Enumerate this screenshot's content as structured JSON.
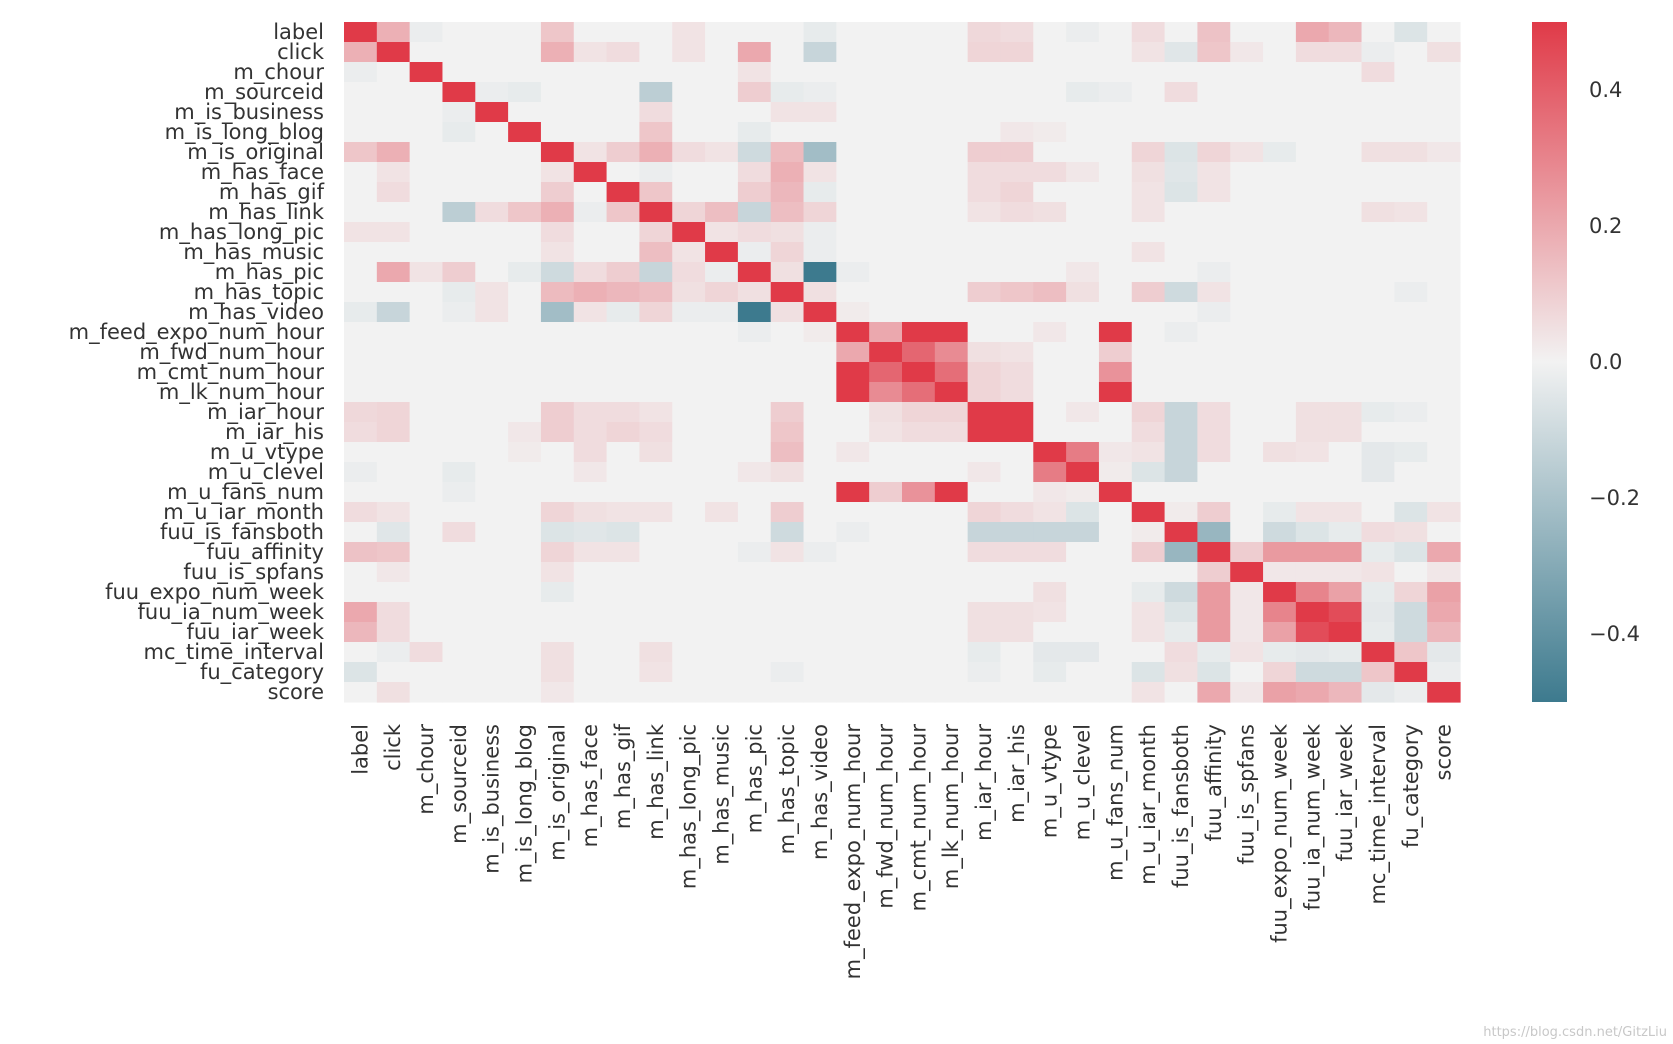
{
  "chart_data": {
    "type": "heatmap",
    "title": "",
    "labels": [
      "label",
      "click",
      "m_chour",
      "m_sourceid",
      "m_is_business",
      "m_is_long_blog",
      "m_is_original",
      "m_has_face",
      "m_has_gif",
      "m_has_link",
      "m_has_long_pic",
      "m_has_music",
      "m_has_pic",
      "m_has_topic",
      "m_has_video",
      "m_feed_expo_num_hour",
      "m_fwd_num_hour",
      "m_cmt_num_hour",
      "m_lk_num_hour",
      "m_iar_hour",
      "m_iar_his",
      "m_u_vtype",
      "m_u_clevel",
      "m_u_fans_num",
      "m_u_iar_month",
      "fuu_is_fansboth",
      "fuu_affinity",
      "fuu_is_spfans",
      "fuu_expo_num_week",
      "fuu_ia_num_week",
      "fuu_iar_week",
      "mc_time_interval",
      "fu_category",
      "score"
    ],
    "vmin": -0.5,
    "vmax": 0.5,
    "colormap": {
      "negative": "#3d7a8e",
      "center": "#f2f2f2",
      "positive": "#e03a48"
    },
    "colorbar_ticks": [
      -0.4,
      -0.2,
      0.0,
      0.2,
      0.4
    ],
    "colorbar_tick_labels": [
      "−0.4",
      "−0.2",
      "0.0",
      "0.2",
      "0.4"
    ],
    "entries": [
      [
        0,
        1,
        0.18
      ],
      [
        0,
        2,
        -0.02
      ],
      [
        0,
        6,
        0.12
      ],
      [
        0,
        10,
        0.04
      ],
      [
        0,
        14,
        -0.03
      ],
      [
        0,
        19,
        0.07
      ],
      [
        0,
        20,
        0.06
      ],
      [
        0,
        22,
        -0.02
      ],
      [
        0,
        24,
        0.06
      ],
      [
        0,
        26,
        0.13
      ],
      [
        0,
        29,
        0.2
      ],
      [
        0,
        30,
        0.16
      ],
      [
        0,
        32,
        -0.06
      ],
      [
        1,
        6,
        0.18
      ],
      [
        1,
        7,
        0.04
      ],
      [
        1,
        8,
        0.06
      ],
      [
        1,
        10,
        0.04
      ],
      [
        1,
        12,
        0.2
      ],
      [
        1,
        14,
        -0.12
      ],
      [
        1,
        19,
        0.08
      ],
      [
        1,
        20,
        0.08
      ],
      [
        1,
        24,
        0.04
      ],
      [
        1,
        25,
        -0.05
      ],
      [
        1,
        26,
        0.12
      ],
      [
        1,
        27,
        0.03
      ],
      [
        1,
        29,
        0.06
      ],
      [
        1,
        30,
        0.06
      ],
      [
        1,
        31,
        -0.02
      ],
      [
        1,
        33,
        0.05
      ],
      [
        2,
        12,
        0.04
      ],
      [
        2,
        31,
        0.06
      ],
      [
        3,
        9,
        -0.15
      ],
      [
        3,
        12,
        0.1
      ],
      [
        3,
        13,
        -0.03
      ],
      [
        3,
        14,
        -0.02
      ],
      [
        3,
        5,
        -0.03
      ],
      [
        3,
        4,
        -0.02
      ],
      [
        3,
        22,
        -0.03
      ],
      [
        3,
        23,
        -0.02
      ],
      [
        3,
        25,
        0.06
      ],
      [
        4,
        9,
        0.06
      ],
      [
        4,
        13,
        0.04
      ],
      [
        4,
        14,
        0.04
      ],
      [
        5,
        9,
        0.12
      ],
      [
        5,
        12,
        -0.03
      ],
      [
        5,
        20,
        0.03
      ],
      [
        5,
        21,
        0.02
      ],
      [
        6,
        7,
        0.04
      ],
      [
        6,
        8,
        0.1
      ],
      [
        6,
        9,
        0.18
      ],
      [
        6,
        10,
        0.06
      ],
      [
        6,
        11,
        0.04
      ],
      [
        6,
        12,
        -0.1
      ],
      [
        6,
        13,
        0.15
      ],
      [
        6,
        14,
        -0.22
      ],
      [
        6,
        19,
        0.1
      ],
      [
        6,
        20,
        0.1
      ],
      [
        6,
        24,
        0.08
      ],
      [
        6,
        25,
        -0.06
      ],
      [
        6,
        26,
        0.08
      ],
      [
        6,
        27,
        0.04
      ],
      [
        6,
        28,
        -0.03
      ],
      [
        6,
        31,
        0.05
      ],
      [
        6,
        32,
        0.05
      ],
      [
        6,
        33,
        0.03
      ],
      [
        7,
        9,
        -0.02
      ],
      [
        7,
        12,
        0.06
      ],
      [
        7,
        13,
        0.18
      ],
      [
        7,
        14,
        0.04
      ],
      [
        7,
        19,
        0.06
      ],
      [
        7,
        20,
        0.06
      ],
      [
        7,
        21,
        0.06
      ],
      [
        7,
        22,
        0.03
      ],
      [
        7,
        24,
        0.05
      ],
      [
        7,
        25,
        -0.05
      ],
      [
        7,
        26,
        0.04
      ],
      [
        8,
        9,
        0.12
      ],
      [
        8,
        12,
        0.1
      ],
      [
        8,
        13,
        0.16
      ],
      [
        8,
        14,
        -0.03
      ],
      [
        8,
        19,
        0.06
      ],
      [
        8,
        20,
        0.08
      ],
      [
        8,
        24,
        0.04
      ],
      [
        8,
        25,
        -0.06
      ],
      [
        8,
        26,
        0.04
      ],
      [
        9,
        10,
        0.08
      ],
      [
        9,
        11,
        0.14
      ],
      [
        9,
        12,
        -0.12
      ],
      [
        9,
        13,
        0.14
      ],
      [
        9,
        14,
        0.08
      ],
      [
        9,
        19,
        0.04
      ],
      [
        9,
        20,
        0.06
      ],
      [
        9,
        21,
        0.05
      ],
      [
        9,
        24,
        0.04
      ],
      [
        9,
        31,
        0.05
      ],
      [
        9,
        32,
        0.04
      ],
      [
        10,
        11,
        0.04
      ],
      [
        10,
        12,
        0.06
      ],
      [
        10,
        13,
        0.05
      ],
      [
        10,
        14,
        -0.02
      ],
      [
        11,
        12,
        -0.02
      ],
      [
        11,
        13,
        0.08
      ],
      [
        11,
        14,
        -0.02
      ],
      [
        11,
        24,
        0.04
      ],
      [
        12,
        13,
        0.05
      ],
      [
        12,
        14,
        -0.5
      ],
      [
        12,
        15,
        -0.02
      ],
      [
        12,
        22,
        0.03
      ],
      [
        12,
        26,
        -0.02
      ],
      [
        13,
        14,
        0.05
      ],
      [
        13,
        19,
        0.1
      ],
      [
        13,
        20,
        0.12
      ],
      [
        13,
        21,
        0.14
      ],
      [
        13,
        22,
        0.05
      ],
      [
        13,
        24,
        0.1
      ],
      [
        13,
        25,
        -0.1
      ],
      [
        13,
        26,
        0.04
      ],
      [
        13,
        32,
        -0.02
      ],
      [
        14,
        15,
        0.02
      ],
      [
        14,
        26,
        -0.02
      ],
      [
        15,
        16,
        0.2
      ],
      [
        15,
        17,
        0.5
      ],
      [
        15,
        18,
        0.5
      ],
      [
        15,
        21,
        0.03
      ],
      [
        15,
        23,
        0.5
      ],
      [
        15,
        25,
        -0.02
      ],
      [
        16,
        17,
        0.38
      ],
      [
        16,
        18,
        0.28
      ],
      [
        16,
        19,
        0.05
      ],
      [
        16,
        20,
        0.04
      ],
      [
        16,
        23,
        0.1
      ],
      [
        17,
        18,
        0.36
      ],
      [
        17,
        19,
        0.08
      ],
      [
        17,
        20,
        0.06
      ],
      [
        17,
        23,
        0.26
      ],
      [
        18,
        19,
        0.08
      ],
      [
        18,
        20,
        0.06
      ],
      [
        18,
        23,
        0.5
      ],
      [
        19,
        20,
        0.5
      ],
      [
        19,
        22,
        0.03
      ],
      [
        19,
        24,
        0.08
      ],
      [
        19,
        25,
        -0.12
      ],
      [
        19,
        26,
        0.06
      ],
      [
        19,
        29,
        0.05
      ],
      [
        19,
        30,
        0.05
      ],
      [
        19,
        31,
        -0.03
      ],
      [
        19,
        32,
        -0.02
      ],
      [
        20,
        24,
        0.06
      ],
      [
        20,
        25,
        -0.12
      ],
      [
        20,
        26,
        0.06
      ],
      [
        20,
        29,
        0.05
      ],
      [
        20,
        30,
        0.05
      ],
      [
        21,
        22,
        0.32
      ],
      [
        21,
        23,
        0.03
      ],
      [
        21,
        24,
        0.04
      ],
      [
        21,
        25,
        -0.12
      ],
      [
        21,
        26,
        0.06
      ],
      [
        21,
        28,
        0.05
      ],
      [
        21,
        29,
        0.04
      ],
      [
        21,
        31,
        -0.04
      ],
      [
        21,
        32,
        -0.03
      ],
      [
        22,
        23,
        0.02
      ],
      [
        22,
        24,
        -0.06
      ],
      [
        22,
        25,
        -0.12
      ],
      [
        22,
        31,
        -0.04
      ],
      [
        24,
        25,
        0.02
      ],
      [
        24,
        26,
        0.1
      ],
      [
        24,
        28,
        -0.03
      ],
      [
        24,
        29,
        0.04
      ],
      [
        24,
        30,
        0.04
      ],
      [
        24,
        32,
        -0.06
      ],
      [
        24,
        33,
        0.04
      ],
      [
        25,
        26,
        -0.25
      ],
      [
        25,
        28,
        -0.1
      ],
      [
        25,
        29,
        -0.06
      ],
      [
        25,
        30,
        -0.03
      ],
      [
        25,
        31,
        0.06
      ],
      [
        25,
        32,
        0.05
      ],
      [
        26,
        27,
        0.1
      ],
      [
        26,
        28,
        0.24
      ],
      [
        26,
        29,
        0.24
      ],
      [
        26,
        30,
        0.24
      ],
      [
        26,
        31,
        -0.03
      ],
      [
        26,
        32,
        -0.06
      ],
      [
        26,
        33,
        0.2
      ],
      [
        27,
        28,
        0.03
      ],
      [
        27,
        29,
        0.03
      ],
      [
        27,
        30,
        0.03
      ],
      [
        27,
        31,
        0.04
      ],
      [
        27,
        33,
        0.03
      ],
      [
        28,
        29,
        0.3
      ],
      [
        28,
        30,
        0.22
      ],
      [
        28,
        31,
        -0.03
      ],
      [
        28,
        32,
        0.08
      ],
      [
        28,
        33,
        0.22
      ],
      [
        29,
        30,
        0.45
      ],
      [
        29,
        31,
        -0.04
      ],
      [
        29,
        32,
        -0.1
      ],
      [
        29,
        33,
        0.2
      ],
      [
        30,
        31,
        -0.03
      ],
      [
        30,
        32,
        -0.1
      ],
      [
        30,
        33,
        0.16
      ],
      [
        31,
        32,
        0.12
      ],
      [
        31,
        33,
        -0.04
      ],
      [
        32,
        33,
        -0.02
      ]
    ],
    "diagonal": 1.0,
    "default_value": 0.0
  },
  "watermark": "https://blog.csdn.net/GitzLiu"
}
